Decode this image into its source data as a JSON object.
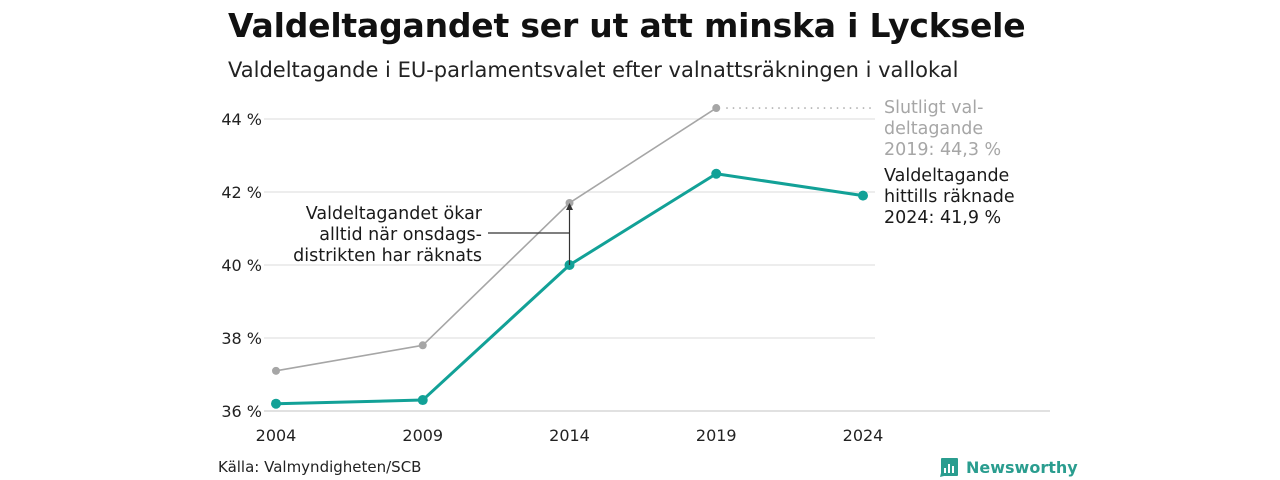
{
  "header": {
    "title": "Valdeltagandet ser ut att minska i Lycksele",
    "subtitle": "Valdeltagande i EU-parlamentsvalet efter valnattsräkningen i vallokal"
  },
  "footer": {
    "source": "Källa: Valmyndigheten/SCB",
    "brand": "Newsworthy"
  },
  "colors": {
    "final": "#a6a6a6",
    "counted": "#12a197",
    "grid": "#e2e2e2",
    "brand": "#2a9d8f"
  },
  "chart_data": {
    "type": "line",
    "x": [
      2004,
      2009,
      2014,
      2019,
      2024
    ],
    "x_tick_labels": [
      "2004",
      "2009",
      "2014",
      "2019",
      "2024"
    ],
    "y_ticks": [
      36,
      38,
      40,
      42,
      44
    ],
    "y_tick_labels": [
      "36 %",
      "38 %",
      "40 %",
      "42 %",
      "44 %"
    ],
    "ylim": [
      36,
      44
    ],
    "grid": true,
    "series": [
      {
        "key": "final",
        "values": [
          37.1,
          37.8,
          41.7,
          44.3,
          null
        ]
      },
      {
        "key": "counted",
        "values": [
          36.2,
          36.3,
          40.0,
          42.5,
          41.9
        ]
      }
    ],
    "annotations": {
      "final_lines": [
        "Slutligt val-",
        "deltagande",
        "2019: 44,3 %"
      ],
      "counted_lines": [
        "Valdeltagande",
        "hittills räknade",
        "2024: 41,9 %"
      ],
      "note_lines": [
        "Valdeltagandet ökar",
        "alltid när onsdags-",
        "distrikten har räknats"
      ]
    }
  }
}
